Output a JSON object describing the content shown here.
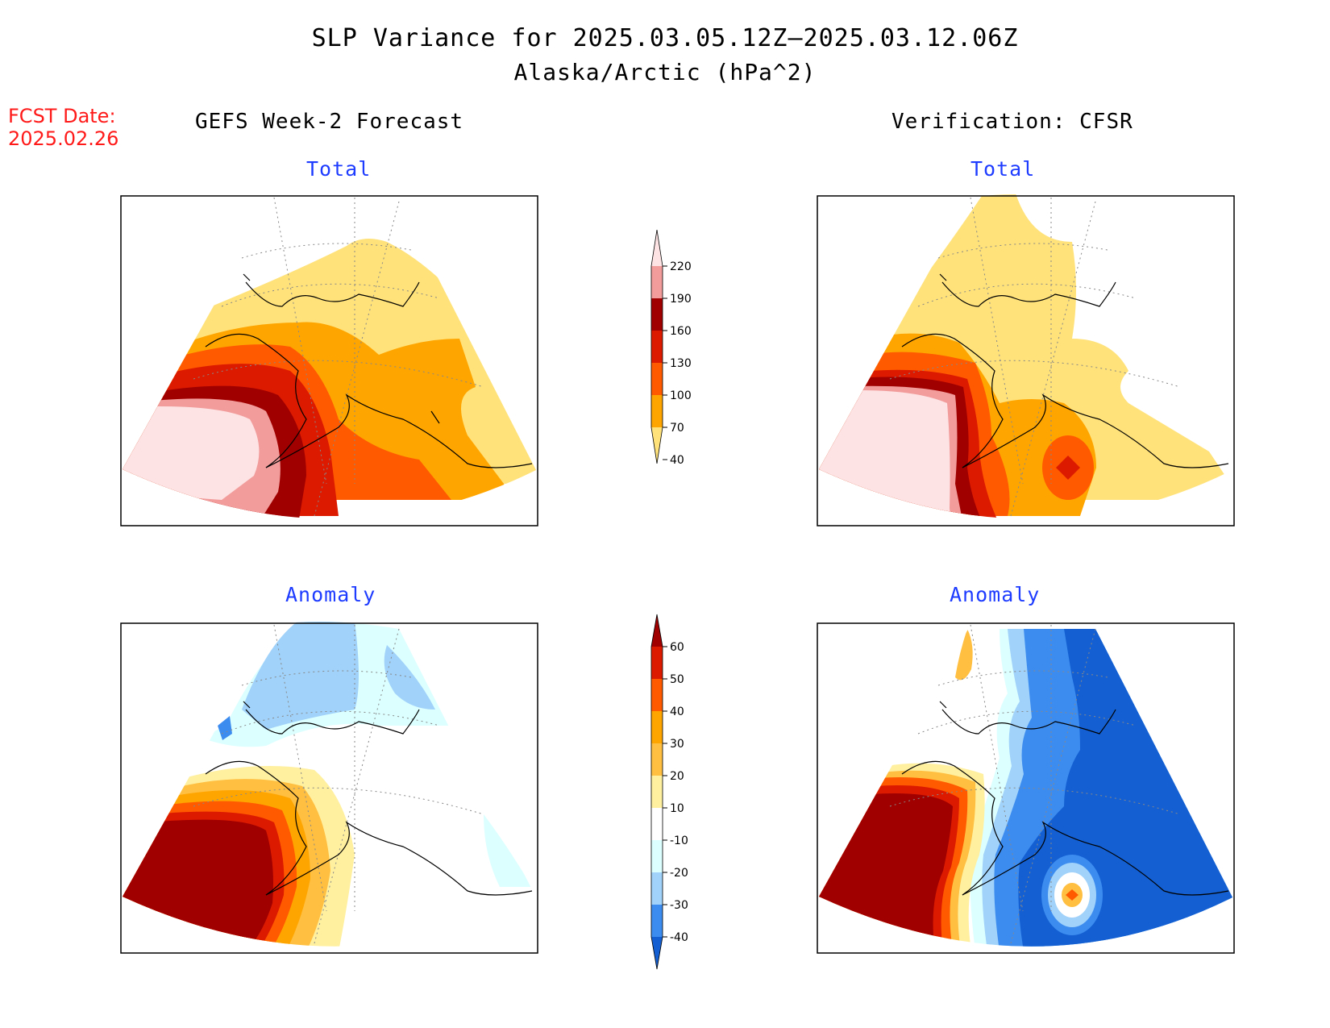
{
  "header": {
    "title": "SLP Variance for 2025.03.05.12Z–2025.03.12.06Z",
    "subtitle": "Alaska/Arctic (hPa^2)"
  },
  "forecast_date": {
    "label": "FCST Date:",
    "value": "2025.02.26"
  },
  "columns": {
    "left": "GEFS Week-2 Forecast",
    "right": "Verification: CFSR"
  },
  "panels": {
    "gefs_total": "Total",
    "gefs_anomaly": "Anomaly",
    "cfsr_total": "Total",
    "cfsr_anomaly": "Anomaly"
  },
  "colorbars": {
    "total": {
      "ticks": [
        "220",
        "190",
        "160",
        "130",
        "100",
        "70",
        "40"
      ],
      "colors": [
        "#fde3e3",
        "#f29c9c",
        "#a00000",
        "#dc1a00",
        "#ff5a00",
        "#ffa500",
        "#ffe27a"
      ]
    },
    "anomaly": {
      "ticks": [
        "60",
        "50",
        "40",
        "30",
        "20",
        "10",
        "-10",
        "-20",
        "-30",
        "-40"
      ],
      "colors": [
        "#a00000",
        "#dc1a00",
        "#ff5a00",
        "#ffa500",
        "#ffbf40",
        "#fff0a0",
        "#ffffff",
        "#dcffff",
        "#a0d2fa",
        "#3c8cf0",
        "#1460d2"
      ]
    }
  }
}
